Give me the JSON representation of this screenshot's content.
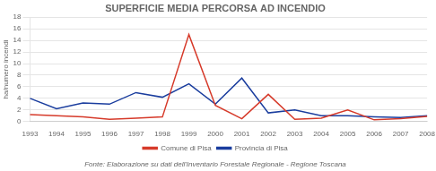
{
  "chart_data": {
    "type": "line",
    "title": "SUPERFICIE MEDIA PERCORSA AD INCENDIO",
    "ylabel": "ha/numero incendi",
    "categories": [
      "1993",
      "1994",
      "1995",
      "1996",
      "1997",
      "1998",
      "1999",
      "2000",
      "2001",
      "2002",
      "2003",
      "2004",
      "2005",
      "2006",
      "2007",
      "2008"
    ],
    "series": [
      {
        "name": "Comune di Pisa",
        "color": "#d63a2a",
        "values": [
          1.2,
          1.0,
          0.8,
          0.4,
          0.6,
          0.8,
          15.0,
          2.8,
          0.5,
          4.7,
          0.4,
          0.6,
          2.0,
          0.3,
          0.5,
          0.9
        ]
      },
      {
        "name": "Provincia di Pisa",
        "color": "#1a3d9e",
        "values": [
          4.0,
          2.2,
          3.2,
          3.0,
          5.0,
          4.2,
          6.5,
          3.0,
          7.5,
          1.5,
          2.0,
          1.0,
          1.0,
          0.8,
          0.7,
          1.0
        ]
      }
    ],
    "ylim": [
      0,
      18
    ],
    "yticks": [
      0,
      2,
      4,
      6,
      8,
      10,
      12,
      14,
      16,
      18
    ],
    "grid": "y",
    "legend": "bottom",
    "annotations": [
      "Fonte: Elaborazione su dati dell'Inventario Forestale Regionale - Regione Toscana"
    ]
  }
}
